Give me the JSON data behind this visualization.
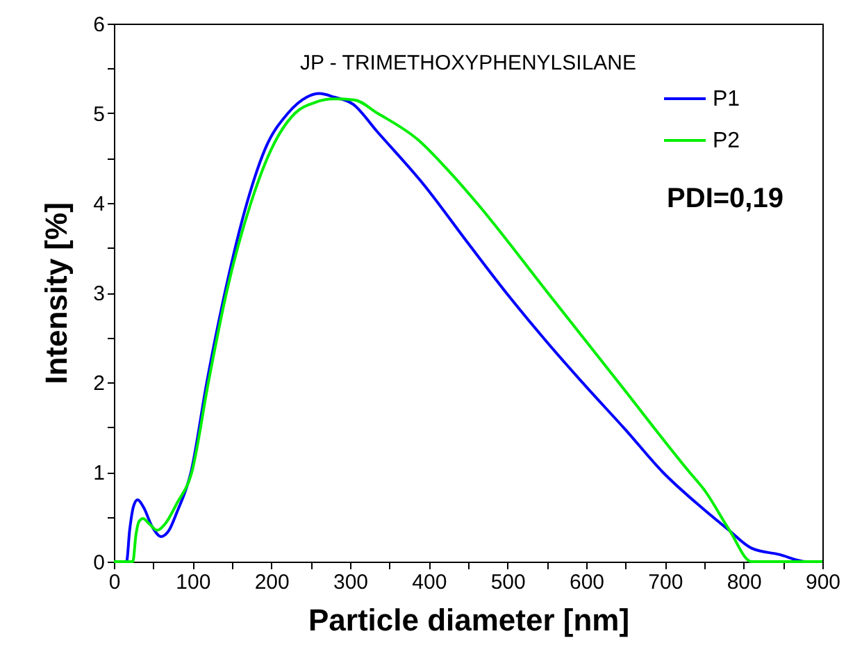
{
  "chart_data": {
    "type": "line",
    "title": "JP - TRIMETHOXYPHENYLSILANE",
    "xlabel": "Particle diameter [nm]",
    "ylabel": "Intensity [%]",
    "annotations": [
      "PDI=0,19"
    ],
    "xlim": [
      0,
      900
    ],
    "xticks": [
      0,
      {
        "value": 50,
        "label": null
      },
      100,
      {
        "value": 150,
        "label": null
      },
      200,
      {
        "value": 250,
        "label": null
      },
      300,
      {
        "value": 350,
        "label": null
      },
      400,
      {
        "value": 450,
        "label": null
      },
      500,
      {
        "value": 550,
        "label": null
      },
      600,
      {
        "value": 650,
        "label": null
      },
      700,
      {
        "value": 750,
        "label": null
      },
      800,
      {
        "value": 850,
        "label": null
      },
      900
    ],
    "ylim": [
      0,
      6
    ],
    "yticks": [
      0,
      {
        "value": 0.5,
        "label": null
      },
      1,
      {
        "value": 1.5,
        "label": null
      },
      2,
      {
        "value": 2.5,
        "label": null
      },
      3,
      {
        "value": 3.5,
        "label": null
      },
      4,
      {
        "value": 4.5,
        "label": null
      },
      5,
      {
        "value": 5.5,
        "label": null
      },
      6
    ],
    "grid": false,
    "legend": "top right",
    "line_style": "solid",
    "marker": "none",
    "series": [
      {
        "name": "P1",
        "color": "#0000ff",
        "x": [
          0,
          16,
          20,
          25,
          30,
          38,
          48,
          60,
          70,
          80,
          98,
          118,
          141,
          169,
          192,
          221,
          245,
          261,
          280,
          304,
          334,
          394,
          450,
          500,
          550,
          600,
          650,
          697,
          747,
          780,
          810,
          845,
          880,
          900
        ],
        "values": [
          0,
          0,
          0.35,
          0.62,
          0.69,
          0.6,
          0.4,
          0.28,
          0.35,
          0.55,
          1,
          2,
          3,
          4,
          4.6,
          5,
          5.18,
          5.22,
          5.18,
          5.1,
          4.8,
          4.2,
          3.55,
          2.98,
          2.45,
          1.95,
          1.47,
          1,
          0.6,
          0.36,
          0.15,
          0.08,
          0,
          0
        ]
      },
      {
        "name": "P2",
        "color": "#00ee00",
        "x": [
          0,
          24,
          28,
          32,
          37,
          45,
          55,
          65,
          80,
          99,
          120,
          143,
          174,
          200,
          230,
          255,
          280,
          305,
          335,
          387,
          424,
          461,
          551,
          641,
          731,
          750,
          782,
          810,
          900
        ],
        "values": [
          0,
          0,
          0.3,
          0.45,
          0.48,
          0.42,
          0.35,
          0.42,
          0.65,
          1,
          2,
          3,
          4,
          4.6,
          5,
          5.12,
          5.16,
          5.15,
          5.0,
          4.7,
          4.37,
          4.0,
          3,
          2,
          1,
          0.8,
          0.35,
          0,
          0
        ]
      }
    ]
  }
}
